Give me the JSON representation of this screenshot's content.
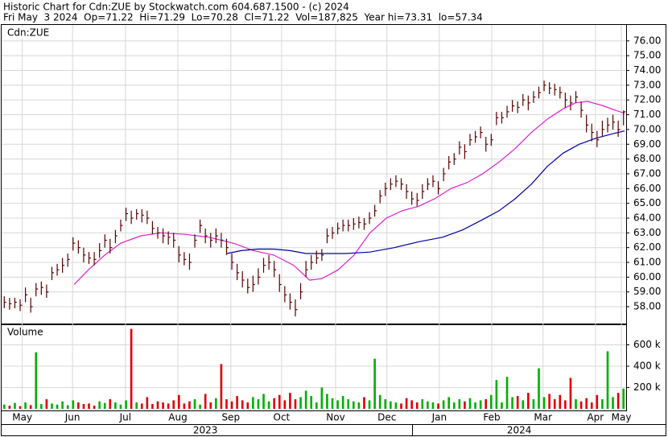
{
  "chart_data": {
    "type": "stock",
    "title": "Historic Chart for Cdn:ZUE by Stockwatch.com 604.687.1500 - (c) 2024",
    "subtitle": "Fri May  3 2024  Op=71.22  Hi=71.29  Lo=70.28  Cl=71.22  Vol=187,825  Year hi=73.31  lo=57.34",
    "symbol_label": "Cdn:ZUE",
    "bar_color": "#5a0000",
    "grid": true,
    "close": [
      58.3,
      58.2,
      58.3,
      58.1,
      58.8,
      58.0,
      59.2,
      59.3,
      59.0,
      60.3,
      60.5,
      60.8,
      61.2,
      62.3,
      62.0,
      61.5,
      61.3,
      61.2,
      61.8,
      62.5,
      62.0,
      62.8,
      63.5,
      64.3,
      64.0,
      64.3,
      64.2,
      64.0,
      63.3,
      63.0,
      62.8,
      62.7,
      62.5,
      61.5,
      61.2,
      61.0,
      62.5,
      63.5,
      62.8,
      62.5,
      62.8,
      62.5,
      62.0,
      61.0,
      60.3,
      59.8,
      59.3,
      59.5,
      60.0,
      60.8,
      61.0,
      60.5,
      59.5,
      58.8,
      58.3,
      57.8,
      59.0,
      60.5,
      61.0,
      61.3,
      61.5,
      62.8,
      63.0,
      63.3,
      63.5,
      63.5,
      63.6,
      63.7,
      63.6,
      64.0,
      64.5,
      65.5,
      66.0,
      66.3,
      66.5,
      66.3,
      65.8,
      65.3,
      65.2,
      65.8,
      66.3,
      66.5,
      66.0,
      67.0,
      67.8,
      68.0,
      68.8,
      68.5,
      69.3,
      69.5,
      69.8,
      69.0,
      69.3,
      70.8,
      70.8,
      71.2,
      71.6,
      71.5,
      72.0,
      71.8,
      72.2,
      72.5,
      73.0,
      72.8,
      72.7,
      72.5,
      72.0,
      71.8,
      72.2,
      71.3,
      70.3,
      69.8,
      69.3,
      70.0,
      70.3,
      70.5,
      70.0,
      71.2
    ],
    "high": [
      58.7,
      58.6,
      58.6,
      58.5,
      59.3,
      58.6,
      59.6,
      59.7,
      59.5,
      60.7,
      60.9,
      61.3,
      61.6,
      62.7,
      62.5,
      62.0,
      61.7,
      61.7,
      62.3,
      62.9,
      62.6,
      63.2,
      63.9,
      64.7,
      64.5,
      64.6,
      64.6,
      64.5,
      63.8,
      63.4,
      63.3,
      63.1,
      63.0,
      62.1,
      61.7,
      61.6,
      62.9,
      63.9,
      63.3,
      63.0,
      63.3,
      63.0,
      62.6,
      61.6,
      60.9,
      60.4,
      59.9,
      60.1,
      60.6,
      61.3,
      61.5,
      61.1,
      60.2,
      59.4,
      58.9,
      58.5,
      59.6,
      61.1,
      61.5,
      61.8,
      61.9,
      63.3,
      63.4,
      63.7,
      63.9,
      63.9,
      64.0,
      64.1,
      64.0,
      64.4,
      64.9,
      65.9,
      66.4,
      66.7,
      66.9,
      66.7,
      66.3,
      65.8,
      65.7,
      66.3,
      66.7,
      66.9,
      66.5,
      67.4,
      68.2,
      68.4,
      69.2,
      69.0,
      69.7,
      69.9,
      70.2,
      69.5,
      69.7,
      71.2,
      71.2,
      71.6,
      72.0,
      71.9,
      72.4,
      72.3,
      72.6,
      72.9,
      73.31,
      73.2,
      73.1,
      72.9,
      72.5,
      72.3,
      72.6,
      71.9,
      71.0,
      70.4,
      69.9,
      70.6,
      70.8,
      71.0,
      70.6,
      71.29
    ],
    "low": [
      57.9,
      57.8,
      57.9,
      57.7,
      58.3,
      57.6,
      58.7,
      58.8,
      58.6,
      59.8,
      60.1,
      60.3,
      60.7,
      61.8,
      61.6,
      61.0,
      60.9,
      60.8,
      61.3,
      62.0,
      61.6,
      62.3,
      63.1,
      63.8,
      63.6,
      63.9,
      63.7,
      63.6,
      62.9,
      62.6,
      62.3,
      62.2,
      62.0,
      61.0,
      60.8,
      60.5,
      62.0,
      63.0,
      62.3,
      62.0,
      62.3,
      62.0,
      61.5,
      60.5,
      59.8,
      59.3,
      58.9,
      59.0,
      59.5,
      60.3,
      60.5,
      60.0,
      59.0,
      58.3,
      57.8,
      57.34,
      58.5,
      60.0,
      60.5,
      60.9,
      61.1,
      62.3,
      62.6,
      62.9,
      63.1,
      63.1,
      63.2,
      63.3,
      63.2,
      63.6,
      64.1,
      65.0,
      65.5,
      65.9,
      66.1,
      65.9,
      65.3,
      64.9,
      64.8,
      65.3,
      65.9,
      66.1,
      65.6,
      66.5,
      67.3,
      67.6,
      68.3,
      68.0,
      68.9,
      69.1,
      69.4,
      68.5,
      68.9,
      70.3,
      70.4,
      70.8,
      71.2,
      71.1,
      71.6,
      71.3,
      71.8,
      72.1,
      72.6,
      72.4,
      72.3,
      72.1,
      71.5,
      71.3,
      71.8,
      70.8,
      69.8,
      69.2,
      68.8,
      69.5,
      69.8,
      70.0,
      69.5,
      70.28
    ],
    "xlim": [
      -0.5,
      117.5
    ],
    "xticks": [
      {
        "value": 3.4,
        "label": "May"
      },
      {
        "value": 12.9,
        "label": "Jun"
      },
      {
        "value": 22.9,
        "label": "Jul"
      },
      {
        "value": 32.8,
        "label": "Aug"
      },
      {
        "value": 42.8,
        "label": "Sep"
      },
      {
        "value": 52.4,
        "label": "Oct"
      },
      {
        "value": 62.6,
        "label": "Nov"
      },
      {
        "value": 72.3,
        "label": "Dec"
      },
      {
        "value": 82.2,
        "label": "Jan"
      },
      {
        "value": 92.1,
        "label": "Feb"
      },
      {
        "value": 101.8,
        "label": "Mar"
      },
      {
        "value": 111.7,
        "label": "Apr"
      },
      {
        "value": 116.6,
        "label": "May"
      }
    ],
    "year_ticks": [
      {
        "value": 38.0,
        "label": "2023"
      },
      {
        "value": 97.3,
        "label": "2024"
      }
    ],
    "ylim": [
      56.86,
      77.08
    ],
    "yticks": [
      {
        "value": 58,
        "label": "58.00"
      },
      {
        "value": 59,
        "label": "59.00"
      },
      {
        "value": 60,
        "label": "60.00"
      },
      {
        "value": 61,
        "label": "61.00"
      },
      {
        "value": 62,
        "label": "62.00"
      },
      {
        "value": 63,
        "label": "63.00"
      },
      {
        "value": 64,
        "label": "64.00"
      },
      {
        "value": 65,
        "label": "65.00"
      },
      {
        "value": 66,
        "label": "66.00"
      },
      {
        "value": 67,
        "label": "67.00"
      },
      {
        "value": 68,
        "label": "68.00"
      },
      {
        "value": 69,
        "label": "69.00"
      },
      {
        "value": 70,
        "label": "70.00"
      },
      {
        "value": 71,
        "label": "71.00"
      },
      {
        "value": 72,
        "label": "72.00"
      },
      {
        "value": 73,
        "label": "73.00"
      },
      {
        "value": 74,
        "label": "74.00"
      },
      {
        "value": 75,
        "label": "75.00"
      },
      {
        "value": 76,
        "label": "76.00"
      }
    ],
    "moving_averages": [
      {
        "color": "#e020d0",
        "x": [
          13.2,
          15.9,
          19.0,
          22.0,
          25.8,
          29.6,
          34.2,
          38.7,
          43.3,
          47.1,
          50.9,
          54.7,
          57.7,
          60.0,
          63.1,
          66.1,
          69.1,
          72.2,
          75.2,
          78.3,
          81.3,
          84.4,
          87.4,
          90.4,
          93.5,
          96.5,
          99.6,
          102.6,
          105.6,
          107.9,
          110.2,
          113.2,
          115.5,
          117.2
        ],
        "values": [
          59.5,
          60.5,
          61.5,
          62.3,
          62.8,
          63.0,
          62.9,
          62.7,
          62.3,
          61.8,
          61.5,
          60.8,
          59.8,
          59.9,
          60.5,
          61.5,
          63.0,
          64.0,
          64.5,
          64.8,
          65.3,
          66.0,
          66.4,
          67.0,
          67.8,
          68.7,
          69.8,
          70.7,
          71.4,
          71.8,
          71.9,
          71.6,
          71.3,
          71.1
        ]
      },
      {
        "color": "#0000a0",
        "x": [
          42.1,
          44.8,
          47.9,
          50.9,
          54.0,
          57.0,
          60.0,
          64.6,
          69.1,
          73.7,
          78.3,
          82.8,
          86.6,
          90.4,
          93.5,
          96.5,
          99.6,
          102.6,
          105.6,
          108.6,
          111.7,
          114.8,
          117.2
        ],
        "values": [
          61.6,
          61.8,
          61.9,
          61.9,
          61.8,
          61.6,
          61.6,
          61.6,
          61.7,
          62.0,
          62.4,
          62.7,
          63.2,
          63.9,
          64.5,
          65.3,
          66.3,
          67.5,
          68.4,
          69.0,
          69.4,
          69.7,
          69.9
        ]
      }
    ],
    "volume": {
      "label": "Volume",
      "up_color": "#00b000",
      "down_color": "#e00000",
      "ylim": [
        -15000,
        785000
      ],
      "yticks": [
        {
          "value": 200000,
          "label": "200 k"
        },
        {
          "value": 400000,
          "label": "400 k"
        },
        {
          "value": 600000,
          "label": "600 k"
        }
      ],
      "values": [
        40000,
        30000,
        55000,
        25000,
        60000,
        35000,
        530000,
        45000,
        90000,
        50000,
        40000,
        70000,
        35000,
        80000,
        60000,
        45000,
        50000,
        30000,
        70000,
        55000,
        90000,
        60000,
        40000,
        80000,
        750000,
        60000,
        50000,
        110000,
        45000,
        70000,
        60000,
        50000,
        80000,
        130000,
        50000,
        70000,
        90000,
        40000,
        140000,
        60000,
        100000,
        420000,
        90000,
        70000,
        120000,
        80000,
        60000,
        110000,
        90000,
        140000,
        70000,
        100000,
        130000,
        80000,
        150000,
        90000,
        110000,
        170000,
        120000,
        60000,
        200000,
        140000,
        100000,
        80000,
        120000,
        90000,
        70000,
        60000,
        110000,
        80000,
        470000,
        130000,
        90000,
        70000,
        60000,
        50000,
        100000,
        80000,
        60000,
        90000,
        70000,
        60000,
        50000,
        80000,
        110000,
        60000,
        90000,
        70000,
        100000,
        60000,
        80000,
        90000,
        130000,
        270000,
        60000,
        300000,
        110000,
        120000,
        80000,
        150000,
        90000,
        380000,
        110000,
        140000,
        90000,
        130000,
        80000,
        290000,
        90000,
        70000,
        100000,
        60000,
        130000,
        90000,
        540000,
        110000,
        150000,
        190000
      ]
    }
  }
}
